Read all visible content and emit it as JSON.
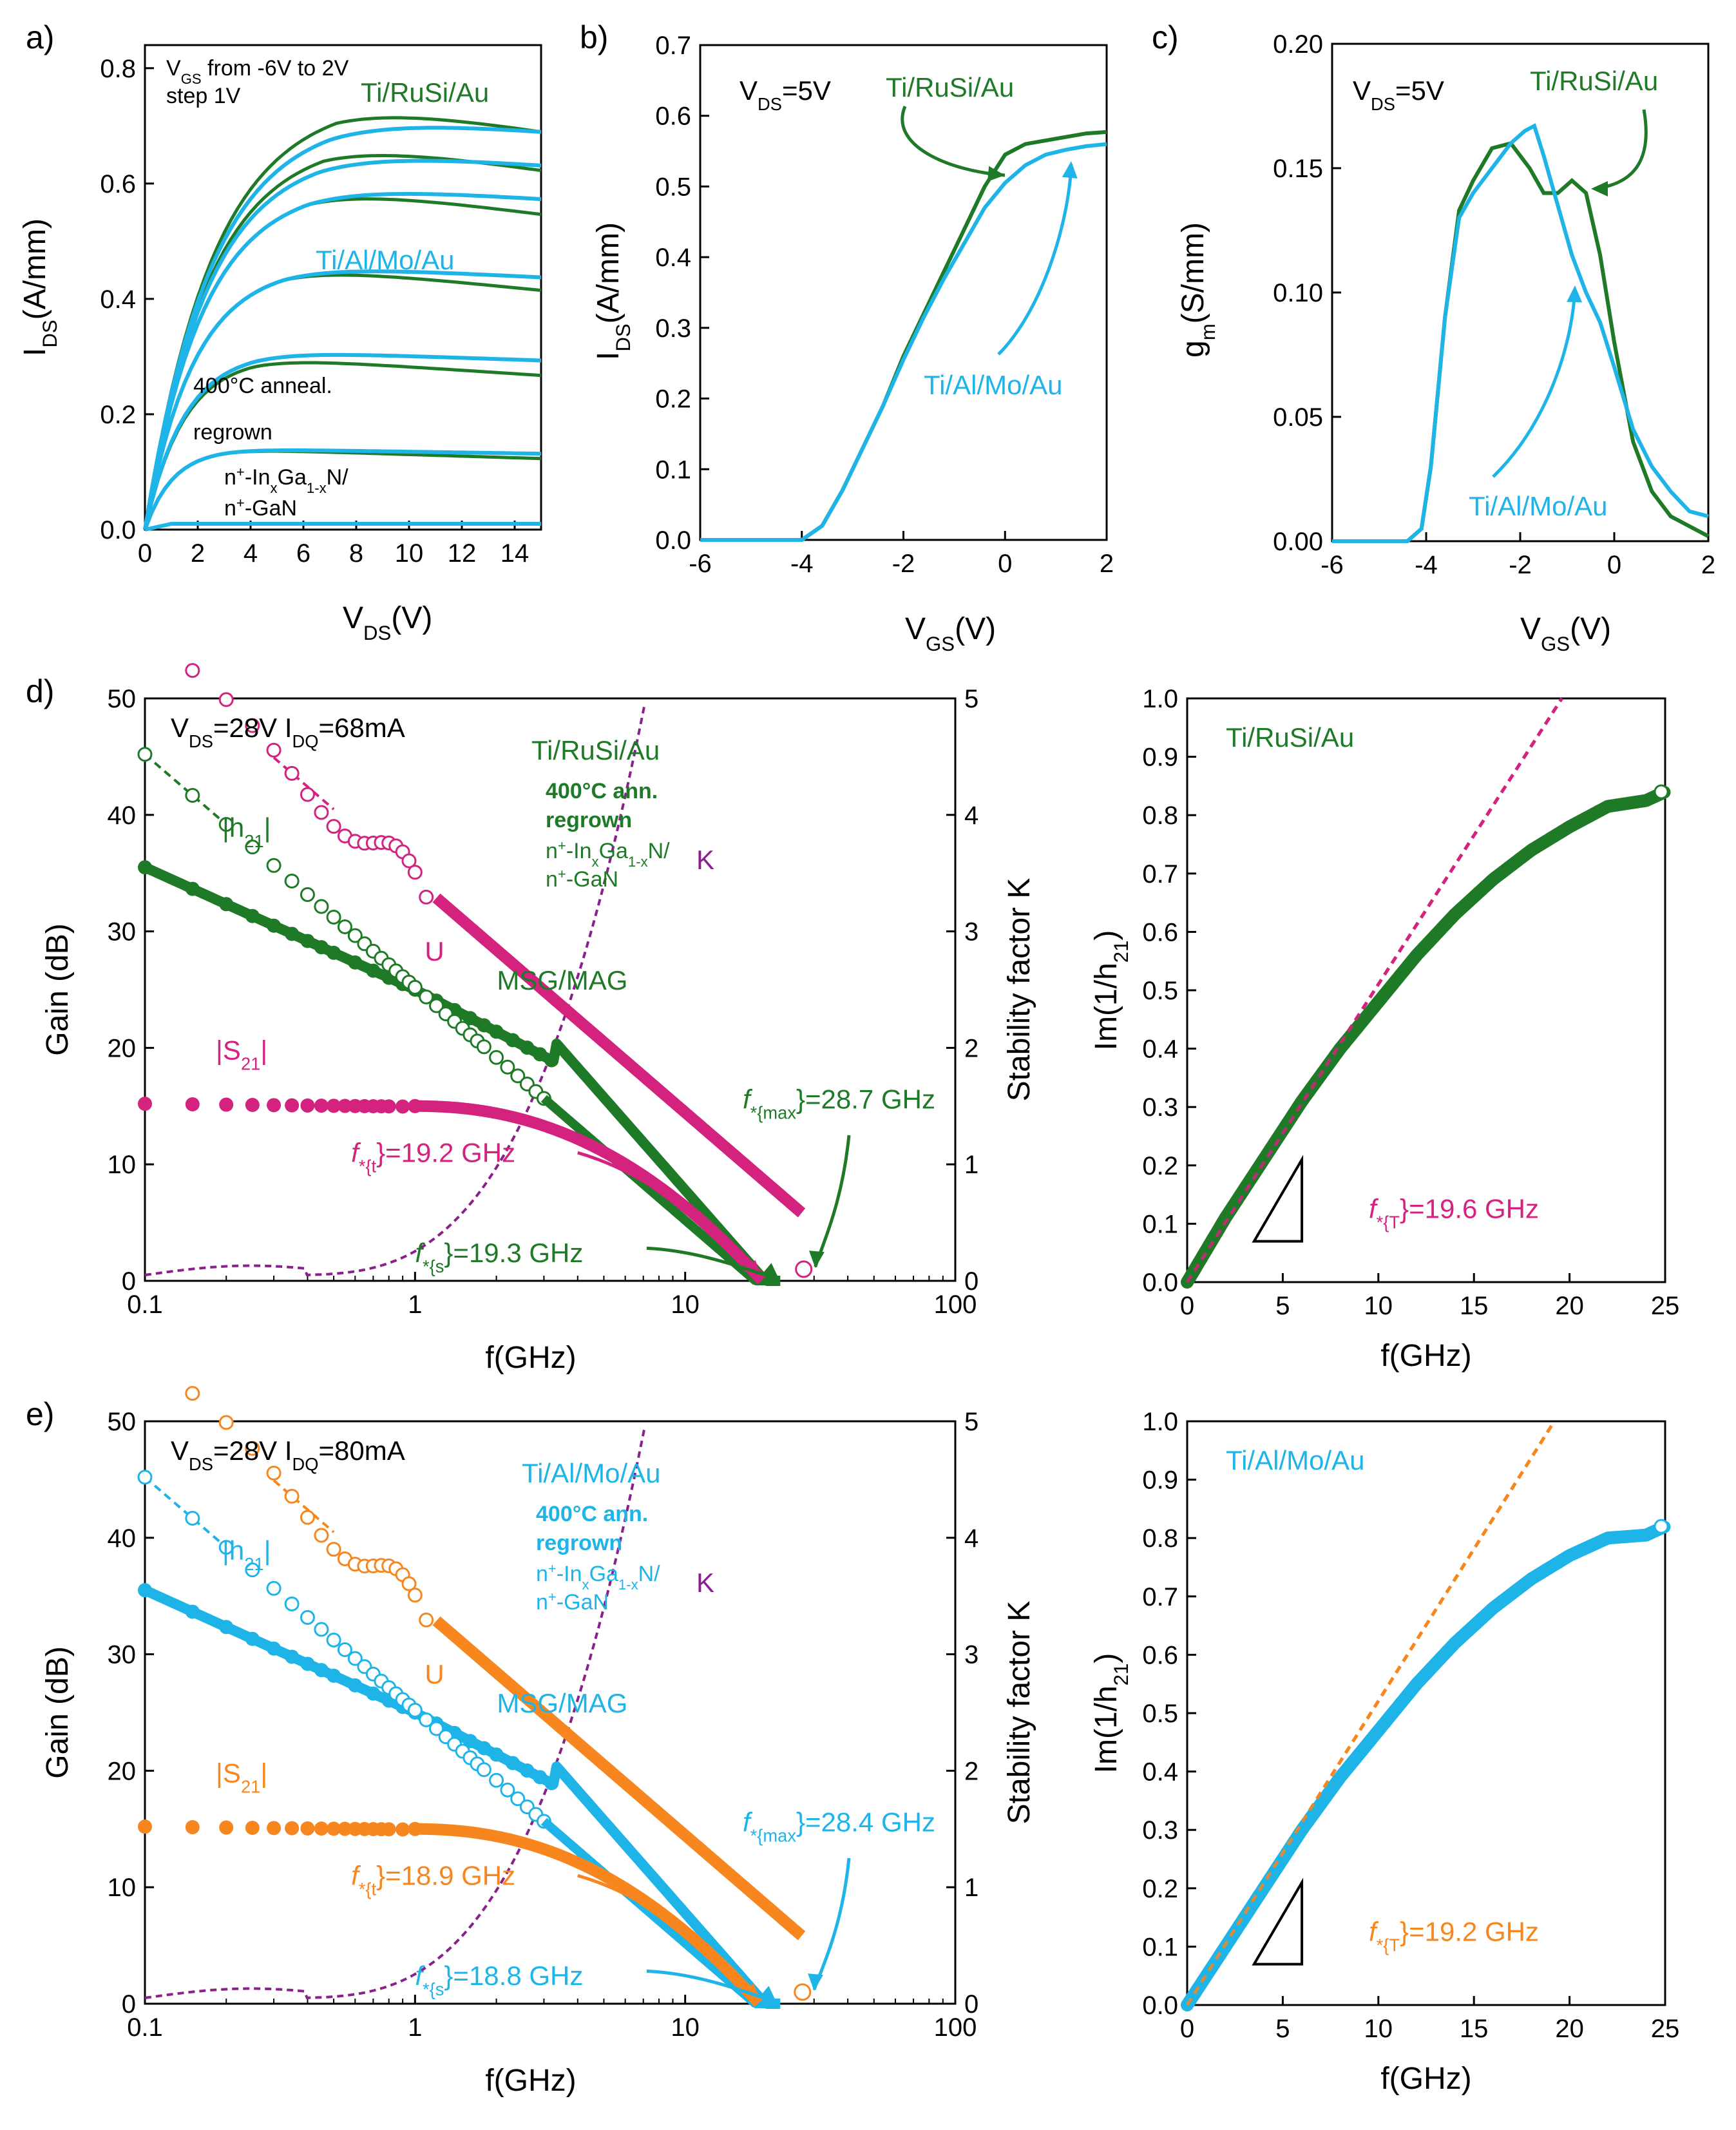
{
  "colors": {
    "green": "#1f7a28",
    "cyan": "#1fb4e8",
    "magenta": "#d4237f",
    "orange": "#f7861f",
    "purple": "#8a1f8e"
  },
  "chart_data": [
    {
      "id": "a",
      "type": "line",
      "panel_label": "a)",
      "xlabel": "V_DS(V)",
      "ylabel": "I_DS(A/mm)",
      "xlim": [
        0,
        15
      ],
      "ylim": [
        0,
        0.84
      ],
      "xticks": [
        0,
        2,
        4,
        6,
        8,
        10,
        12,
        14
      ],
      "yticks": [
        0.0,
        0.2,
        0.4,
        0.6,
        0.8
      ],
      "annotations": [
        "V_GS from -6V to 2V",
        "step 1V",
        "Ti/RuSi/Au",
        "Ti/Al/Mo/Au",
        "400°C anneal.",
        "regrown",
        "n+-InxGa1-xN/",
        "n+-GaN"
      ],
      "series": [
        {
          "name": "Ti/RuSi/Au",
          "color": "green",
          "saturation_levels": [
            0.75,
            0.68,
            0.6,
            0.46,
            0.3,
            0.14,
            0.01
          ]
        },
        {
          "name": "Ti/Al/Mo/Au",
          "color": "cyan",
          "saturation_levels": [
            0.72,
            0.66,
            0.6,
            0.46,
            0.31,
            0.14,
            0.01
          ]
        }
      ]
    },
    {
      "id": "b",
      "type": "line",
      "panel_label": "b)",
      "xlabel": "V_GS(V)",
      "ylabel": "I_DS(A/mm)",
      "xlim": [
        -6,
        2
      ],
      "ylim": [
        0,
        0.7
      ],
      "xticks": [
        -6,
        -4,
        -2,
        0,
        2
      ],
      "yticks": [
        0.0,
        0.1,
        0.2,
        0.3,
        0.4,
        0.5,
        0.6,
        0.7
      ],
      "annotations": [
        "V_DS=5V",
        "Ti/RuSi/Au",
        "Ti/Al/Mo/Au"
      ],
      "series": [
        {
          "name": "Ti/RuSi/Au",
          "color": "green",
          "x": [
            -6,
            -4,
            -3.6,
            -3.2,
            -2.8,
            -2.4,
            -2,
            -1.6,
            -1.2,
            -0.8,
            -0.4,
            0,
            0.4,
            0.8,
            1.2,
            1.6,
            2
          ],
          "y": [
            0,
            0,
            0.02,
            0.07,
            0.13,
            0.19,
            0.26,
            0.32,
            0.38,
            0.44,
            0.5,
            0.545,
            0.56,
            0.565,
            0.57,
            0.575,
            0.577
          ]
        },
        {
          "name": "Ti/Al/Mo/Au",
          "color": "cyan",
          "x": [
            -6,
            -4,
            -3.6,
            -3.2,
            -2.8,
            -2.4,
            -2,
            -1.6,
            -1.2,
            -0.8,
            -0.4,
            0,
            0.4,
            0.8,
            1.2,
            1.6,
            2
          ],
          "y": [
            0,
            0,
            0.02,
            0.07,
            0.13,
            0.19,
            0.255,
            0.315,
            0.37,
            0.42,
            0.47,
            0.505,
            0.53,
            0.545,
            0.552,
            0.557,
            0.56
          ]
        }
      ]
    },
    {
      "id": "c",
      "type": "line",
      "panel_label": "c)",
      "xlabel": "V_GS(V)",
      "ylabel": "g_m(S/mm)",
      "xlim": [
        -6,
        2
      ],
      "ylim": [
        0,
        0.2
      ],
      "xticks": [
        -6,
        -4,
        -2,
        0,
        2
      ],
      "yticks": [
        0.0,
        0.05,
        0.1,
        0.15,
        0.2
      ],
      "annotations": [
        "V_DS=5V",
        "Ti/RuSi/Au",
        "Ti/Al/Mo/Au"
      ],
      "series": [
        {
          "name": "Ti/RuSi/Au",
          "color": "green",
          "x": [
            -6,
            -4.4,
            -4.1,
            -3.9,
            -3.6,
            -3.3,
            -3,
            -2.6,
            -2.2,
            -1.8,
            -1.5,
            -1.2,
            -0.9,
            -0.6,
            -0.3,
            0,
            0.4,
            0.8,
            1.2,
            2
          ],
          "y": [
            0,
            0,
            0.005,
            0.03,
            0.09,
            0.133,
            0.145,
            0.158,
            0.16,
            0.15,
            0.14,
            0.14,
            0.145,
            0.14,
            0.115,
            0.08,
            0.04,
            0.02,
            0.01,
            0.002
          ]
        },
        {
          "name": "Ti/Al/Mo/Au",
          "color": "cyan",
          "x": [
            -6,
            -4.4,
            -4.1,
            -3.9,
            -3.6,
            -3.3,
            -3,
            -2.6,
            -2.2,
            -1.9,
            -1.7,
            -1.5,
            -1.2,
            -0.9,
            -0.6,
            -0.3,
            0,
            0.4,
            0.8,
            1.2,
            1.6,
            2
          ],
          "y": [
            0,
            0,
            0.005,
            0.03,
            0.09,
            0.13,
            0.14,
            0.15,
            0.16,
            0.165,
            0.167,
            0.155,
            0.135,
            0.115,
            0.1,
            0.088,
            0.07,
            0.045,
            0.03,
            0.02,
            0.012,
            0.01
          ]
        }
      ]
    },
    {
      "id": "d",
      "type": "scatter",
      "panel_label": "d)",
      "xlabel": "f(GHz)",
      "ylabel": "Gain (dB)",
      "y2label": "Stability factor K",
      "xscale": "log",
      "xlim": [
        0.1,
        100
      ],
      "ylim": [
        0,
        50
      ],
      "y2lim": [
        0,
        5
      ],
      "xticks": [
        0.1,
        1,
        10,
        100
      ],
      "yticks": [
        0,
        10,
        20,
        30,
        40,
        50
      ],
      "y2ticks": [
        0,
        1,
        2,
        3,
        4,
        5
      ],
      "annotations": [
        "V_DS=28V I_DQ=68mA",
        "Ti/RuSi/Au",
        "400°C ann.",
        "regrown",
        "n+-InxGa1-xN/",
        "n+-GaN",
        "|h21|",
        "U",
        "MSG/MAG",
        "|S21|",
        "K",
        "f_max=28.7 GHz",
        "f_t=19.2 GHz",
        "f_s=19.3 GHz"
      ],
      "fmax_GHz": 28.7,
      "ft_GHz": 19.2,
      "fs_GHz": 19.3,
      "main_color": "green",
      "s_color": "magenta"
    },
    {
      "id": "d2",
      "type": "scatter",
      "xlabel": "f(GHz)",
      "ylabel": "Im(1/h21)",
      "xlim": [
        0,
        25
      ],
      "ylim": [
        0,
        1.0
      ],
      "xticks": [
        0,
        5,
        10,
        15,
        20,
        25
      ],
      "yticks": [
        0.0,
        0.1,
        0.2,
        0.3,
        0.4,
        0.5,
        0.6,
        0.7,
        0.8,
        0.9,
        1.0
      ],
      "annotations": [
        "Ti/RuSi/Au",
        "f_T=19.6 GHz"
      ],
      "fT_GHz": 19.6,
      "dot_color": "green",
      "fit_color": "magenta",
      "curve": {
        "x": [
          0,
          2,
          4,
          6,
          8,
          10,
          12,
          14,
          16,
          18,
          20,
          22,
          24,
          25
        ],
        "y": [
          0,
          0.11,
          0.21,
          0.31,
          0.4,
          0.48,
          0.56,
          0.63,
          0.69,
          0.74,
          0.78,
          0.815,
          0.825,
          0.84
        ]
      }
    },
    {
      "id": "e",
      "type": "scatter",
      "panel_label": "e)",
      "xlabel": "f(GHz)",
      "ylabel": "Gain (dB)",
      "y2label": "Stability factor K",
      "xscale": "log",
      "xlim": [
        0.1,
        100
      ],
      "ylim": [
        0,
        50
      ],
      "y2lim": [
        0,
        5
      ],
      "xticks": [
        0.1,
        1,
        10,
        100
      ],
      "yticks": [
        0,
        10,
        20,
        30,
        40,
        50
      ],
      "y2ticks": [
        0,
        1,
        2,
        3,
        4,
        5
      ],
      "annotations": [
        "V_DS=28V I_DQ=80mA",
        "Ti/Al/Mo/Au",
        "400°C ann.",
        "regrown",
        "n+-InxGa1-xN/",
        "n+-GaN",
        "|h21|",
        "U",
        "MSG/MAG",
        "|S21|",
        "K",
        "f_max=28.4 GHz",
        "f_t=18.9 GHz",
        "f_s=18.8 GHz"
      ],
      "fmax_GHz": 28.4,
      "ft_GHz": 18.9,
      "fs_GHz": 18.8,
      "main_color": "cyan",
      "s_color": "orange"
    },
    {
      "id": "e2",
      "type": "scatter",
      "xlabel": "f(GHz)",
      "ylabel": "Im(1/h21)",
      "xlim": [
        0,
        25
      ],
      "ylim": [
        0,
        1.0
      ],
      "xticks": [
        0,
        5,
        10,
        15,
        20,
        25
      ],
      "yticks": [
        0.0,
        0.1,
        0.2,
        0.3,
        0.4,
        0.5,
        0.6,
        0.7,
        0.8,
        0.9,
        1.0
      ],
      "annotations": [
        "Ti/Al/Mo/Au",
        "f_T=19.2 GHz"
      ],
      "fT_GHz": 19.2,
      "dot_color": "cyan",
      "fit_color": "orange",
      "curve": {
        "x": [
          0,
          2,
          4,
          6,
          8,
          10,
          12,
          14,
          16,
          18,
          20,
          22,
          24,
          25
        ],
        "y": [
          0,
          0.1,
          0.2,
          0.3,
          0.39,
          0.47,
          0.55,
          0.62,
          0.68,
          0.73,
          0.77,
          0.8,
          0.805,
          0.82
        ]
      }
    }
  ]
}
